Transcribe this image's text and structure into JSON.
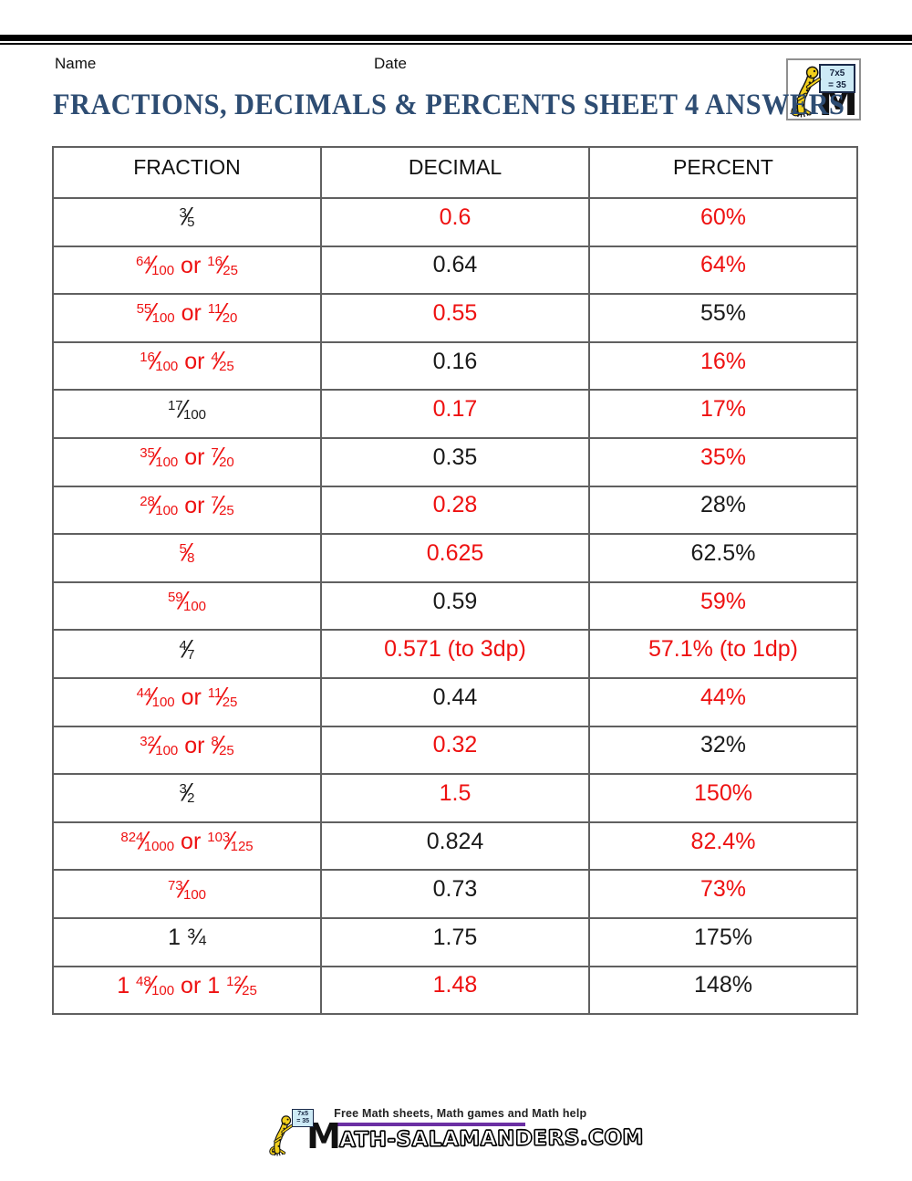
{
  "header": {
    "name_label": "Name",
    "date_label": "Date",
    "title": "FRACTIONS, DECIMALS & PERCENTS SHEET 4 ANSWERS"
  },
  "logo": {
    "board_line1": "7x5",
    "board_line2": "= 35",
    "m_letter": "M"
  },
  "colors": {
    "answer_red": "#ee1111",
    "given_black": "#1a1a1a",
    "title_blue": "#2e4d73",
    "rule_purple": "#6b2fa3",
    "board_blue": "#cdeaf6",
    "salamander_yellow": "#f2cf1b"
  },
  "table": {
    "headers": [
      "FRACTION",
      "DECIMAL",
      "PERCENT"
    ],
    "rows": [
      {
        "fraction": {
          "color": "black",
          "segments": [
            {
              "t": "frac",
              "n": "3",
              "d": "5"
            }
          ]
        },
        "decimal": {
          "color": "red",
          "text": "0.6"
        },
        "percent": {
          "color": "red",
          "text": "60%"
        }
      },
      {
        "fraction": {
          "color": "red",
          "segments": [
            {
              "t": "frac",
              "n": "64",
              "d": "100"
            },
            {
              "t": "text",
              "v": " or "
            },
            {
              "t": "frac",
              "n": "16",
              "d": "25"
            }
          ]
        },
        "decimal": {
          "color": "black",
          "text": "0.64"
        },
        "percent": {
          "color": "red",
          "text": "64%"
        }
      },
      {
        "fraction": {
          "color": "red",
          "segments": [
            {
              "t": "frac",
              "n": "55",
              "d": "100"
            },
            {
              "t": "text",
              "v": " or "
            },
            {
              "t": "frac",
              "n": "11",
              "d": "20"
            }
          ]
        },
        "decimal": {
          "color": "red",
          "text": "0.55"
        },
        "percent": {
          "color": "black",
          "text": "55%"
        }
      },
      {
        "fraction": {
          "color": "red",
          "segments": [
            {
              "t": "frac",
              "n": "16",
              "d": "100"
            },
            {
              "t": "text",
              "v": " or "
            },
            {
              "t": "frac",
              "n": "4",
              "d": "25"
            }
          ]
        },
        "decimal": {
          "color": "black",
          "text": "0.16"
        },
        "percent": {
          "color": "red",
          "text": "16%"
        }
      },
      {
        "fraction": {
          "color": "black",
          "segments": [
            {
              "t": "frac",
              "n": "17",
              "d": "100"
            }
          ]
        },
        "decimal": {
          "color": "red",
          "text": "0.17"
        },
        "percent": {
          "color": "red",
          "text": "17%"
        }
      },
      {
        "fraction": {
          "color": "red",
          "segments": [
            {
              "t": "frac",
              "n": "35",
              "d": "100"
            },
            {
              "t": "text",
              "v": " or "
            },
            {
              "t": "frac",
              "n": "7",
              "d": "20"
            }
          ]
        },
        "decimal": {
          "color": "black",
          "text": "0.35"
        },
        "percent": {
          "color": "red",
          "text": "35%"
        }
      },
      {
        "fraction": {
          "color": "red",
          "segments": [
            {
              "t": "frac",
              "n": "28",
              "d": "100"
            },
            {
              "t": "text",
              "v": " or "
            },
            {
              "t": "frac",
              "n": "7",
              "d": "25"
            }
          ]
        },
        "decimal": {
          "color": "red",
          "text": "0.28"
        },
        "percent": {
          "color": "black",
          "text": "28%"
        }
      },
      {
        "fraction": {
          "color": "red",
          "segments": [
            {
              "t": "frac",
              "n": "5",
              "d": "8"
            }
          ]
        },
        "decimal": {
          "color": "red",
          "text": "0.625"
        },
        "percent": {
          "color": "black",
          "text": "62.5%"
        }
      },
      {
        "fraction": {
          "color": "red",
          "segments": [
            {
              "t": "frac",
              "n": "59",
              "d": "100"
            }
          ]
        },
        "decimal": {
          "color": "black",
          "text": "0.59"
        },
        "percent": {
          "color": "red",
          "text": "59%"
        }
      },
      {
        "fraction": {
          "color": "black",
          "segments": [
            {
              "t": "frac",
              "n": "4",
              "d": "7"
            }
          ]
        },
        "decimal": {
          "color": "red",
          "text": "0.571 (to 3dp)"
        },
        "percent": {
          "color": "red",
          "text": "57.1% (to 1dp)"
        }
      },
      {
        "fraction": {
          "color": "red",
          "segments": [
            {
              "t": "frac",
              "n": "44",
              "d": "100"
            },
            {
              "t": "text",
              "v": " or "
            },
            {
              "t": "frac",
              "n": "11",
              "d": "25"
            }
          ]
        },
        "decimal": {
          "color": "black",
          "text": "0.44"
        },
        "percent": {
          "color": "red",
          "text": "44%"
        }
      },
      {
        "fraction": {
          "color": "red",
          "segments": [
            {
              "t": "frac",
              "n": "32",
              "d": "100"
            },
            {
              "t": "text",
              "v": " or "
            },
            {
              "t": "frac",
              "n": "8",
              "d": "25"
            }
          ]
        },
        "decimal": {
          "color": "red",
          "text": "0.32"
        },
        "percent": {
          "color": "black",
          "text": "32%"
        }
      },
      {
        "fraction": {
          "color": "black",
          "segments": [
            {
              "t": "frac",
              "n": "3",
              "d": "2"
            }
          ]
        },
        "decimal": {
          "color": "red",
          "text": "1.5"
        },
        "percent": {
          "color": "red",
          "text": "150%"
        }
      },
      {
        "fraction": {
          "color": "red",
          "segments": [
            {
              "t": "frac",
              "n": "824",
              "d": "1000"
            },
            {
              "t": "text",
              "v": " or "
            },
            {
              "t": "frac",
              "n": "103",
              "d": "125"
            }
          ]
        },
        "decimal": {
          "color": "black",
          "text": "0.824"
        },
        "percent": {
          "color": "red",
          "text": "82.4%"
        }
      },
      {
        "fraction": {
          "color": "red",
          "segments": [
            {
              "t": "frac",
              "n": "73",
              "d": "100"
            }
          ]
        },
        "decimal": {
          "color": "black",
          "text": "0.73"
        },
        "percent": {
          "color": "red",
          "text": "73%"
        }
      },
      {
        "fraction": {
          "color": "black",
          "segments": [
            {
              "t": "text",
              "v": "1 ¾"
            }
          ]
        },
        "decimal": {
          "color": "black",
          "text": "1.75"
        },
        "percent": {
          "color": "black",
          "text": "175%"
        }
      },
      {
        "fraction": {
          "color": "red",
          "segments": [
            {
              "t": "text",
              "v": "1 "
            },
            {
              "t": "frac",
              "n": "48",
              "d": "100"
            },
            {
              "t": "text",
              "v": " or 1 "
            },
            {
              "t": "frac",
              "n": "12",
              "d": "25"
            }
          ]
        },
        "decimal": {
          "color": "red",
          "text": "1.48"
        },
        "percent": {
          "color": "black",
          "text": "148%"
        }
      }
    ]
  },
  "footer": {
    "tagline": "Free Math sheets, Math games and Math help",
    "site_first_letter": "M",
    "site_rest": "ATH-SALAMANDERS.COM",
    "board_line1": "7x5",
    "board_line2": "= 35"
  }
}
